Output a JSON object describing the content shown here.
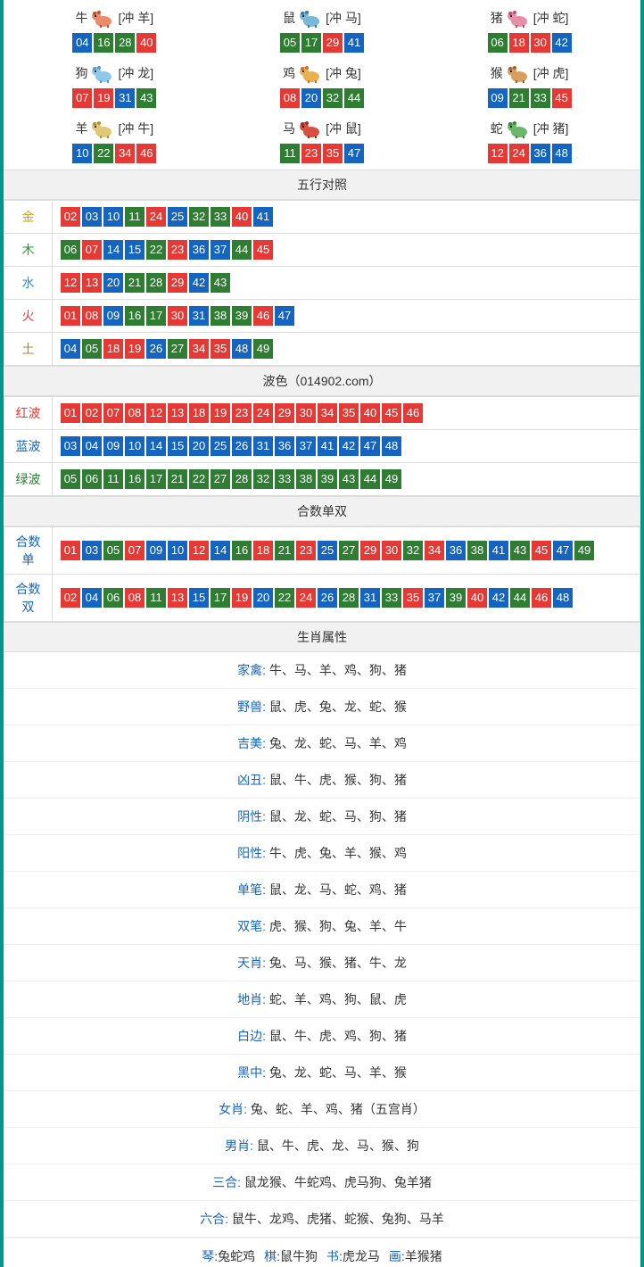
{
  "colors": {
    "red": "#e53935",
    "blue": "#1565c0",
    "green": "#2e7d32",
    "border": "#009688"
  },
  "zodiac_icons": {
    "niu": {
      "body": "#e88c6a",
      "accent": "#c05030"
    },
    "shu": {
      "body": "#7ab8d8",
      "accent": "#3a7da8"
    },
    "zhu": {
      "body": "#e88fa8",
      "accent": "#c05070"
    },
    "gou": {
      "body": "#8fc8e8",
      "accent": "#5a98c8"
    },
    "ji": {
      "body": "#e8b050",
      "accent": "#d07020"
    },
    "hou": {
      "body": "#d8a060",
      "accent": "#a06030"
    },
    "yang": {
      "body": "#e0c878",
      "accent": "#b09038"
    },
    "ma": {
      "body": "#d85040",
      "accent": "#a03020"
    },
    "she": {
      "body": "#6ab86a",
      "accent": "#3a883a"
    }
  },
  "zodiac": [
    {
      "name": "牛",
      "icon": "niu",
      "conflict": "[冲 羊]",
      "nums": [
        {
          "n": "04",
          "c": "blue"
        },
        {
          "n": "16",
          "c": "green"
        },
        {
          "n": "28",
          "c": "green"
        },
        {
          "n": "40",
          "c": "red"
        }
      ]
    },
    {
      "name": "鼠",
      "icon": "shu",
      "conflict": "[冲 马]",
      "nums": [
        {
          "n": "05",
          "c": "green"
        },
        {
          "n": "17",
          "c": "green"
        },
        {
          "n": "29",
          "c": "red"
        },
        {
          "n": "41",
          "c": "blue"
        }
      ]
    },
    {
      "name": "猪",
      "icon": "zhu",
      "conflict": "[冲 蛇]",
      "nums": [
        {
          "n": "06",
          "c": "green"
        },
        {
          "n": "18",
          "c": "red"
        },
        {
          "n": "30",
          "c": "red"
        },
        {
          "n": "42",
          "c": "blue"
        }
      ]
    },
    {
      "name": "狗",
      "icon": "gou",
      "conflict": "[冲 龙]",
      "nums": [
        {
          "n": "07",
          "c": "red"
        },
        {
          "n": "19",
          "c": "red"
        },
        {
          "n": "31",
          "c": "blue"
        },
        {
          "n": "43",
          "c": "green"
        }
      ]
    },
    {
      "name": "鸡",
      "icon": "ji",
      "conflict": "[冲 兔]",
      "nums": [
        {
          "n": "08",
          "c": "red"
        },
        {
          "n": "20",
          "c": "blue"
        },
        {
          "n": "32",
          "c": "green"
        },
        {
          "n": "44",
          "c": "green"
        }
      ]
    },
    {
      "name": "猴",
      "icon": "hou",
      "conflict": "[冲 虎]",
      "nums": [
        {
          "n": "09",
          "c": "blue"
        },
        {
          "n": "21",
          "c": "green"
        },
        {
          "n": "33",
          "c": "green"
        },
        {
          "n": "45",
          "c": "red"
        }
      ]
    },
    {
      "name": "羊",
      "icon": "yang",
      "conflict": "[冲 牛]",
      "nums": [
        {
          "n": "10",
          "c": "blue"
        },
        {
          "n": "22",
          "c": "green"
        },
        {
          "n": "34",
          "c": "red"
        },
        {
          "n": "46",
          "c": "red"
        }
      ]
    },
    {
      "name": "马",
      "icon": "ma",
      "conflict": "[冲 鼠]",
      "nums": [
        {
          "n": "11",
          "c": "green"
        },
        {
          "n": "23",
          "c": "red"
        },
        {
          "n": "35",
          "c": "red"
        },
        {
          "n": "47",
          "c": "blue"
        }
      ]
    },
    {
      "name": "蛇",
      "icon": "she",
      "conflict": "[冲 猪]",
      "nums": [
        {
          "n": "12",
          "c": "red"
        },
        {
          "n": "24",
          "c": "red"
        },
        {
          "n": "36",
          "c": "blue"
        },
        {
          "n": "48",
          "c": "blue"
        }
      ]
    }
  ],
  "wuxing": {
    "title": "五行对照",
    "rows": [
      {
        "label": "金",
        "cls": "label-gold",
        "nums": [
          {
            "n": "02",
            "c": "red"
          },
          {
            "n": "03",
            "c": "blue"
          },
          {
            "n": "10",
            "c": "blue"
          },
          {
            "n": "11",
            "c": "green"
          },
          {
            "n": "24",
            "c": "red"
          },
          {
            "n": "25",
            "c": "blue"
          },
          {
            "n": "32",
            "c": "green"
          },
          {
            "n": "33",
            "c": "green"
          },
          {
            "n": "40",
            "c": "red"
          },
          {
            "n": "41",
            "c": "blue"
          }
        ]
      },
      {
        "label": "木",
        "cls": "label-wood",
        "nums": [
          {
            "n": "06",
            "c": "green"
          },
          {
            "n": "07",
            "c": "red"
          },
          {
            "n": "14",
            "c": "blue"
          },
          {
            "n": "15",
            "c": "blue"
          },
          {
            "n": "22",
            "c": "green"
          },
          {
            "n": "23",
            "c": "red"
          },
          {
            "n": "36",
            "c": "blue"
          },
          {
            "n": "37",
            "c": "blue"
          },
          {
            "n": "44",
            "c": "green"
          },
          {
            "n": "45",
            "c": "red"
          }
        ]
      },
      {
        "label": "水",
        "cls": "label-water",
        "nums": [
          {
            "n": "12",
            "c": "red"
          },
          {
            "n": "13",
            "c": "red"
          },
          {
            "n": "20",
            "c": "blue"
          },
          {
            "n": "21",
            "c": "green"
          },
          {
            "n": "28",
            "c": "green"
          },
          {
            "n": "29",
            "c": "red"
          },
          {
            "n": "42",
            "c": "blue"
          },
          {
            "n": "43",
            "c": "green"
          }
        ]
      },
      {
        "label": "火",
        "cls": "label-fire",
        "nums": [
          {
            "n": "01",
            "c": "red"
          },
          {
            "n": "08",
            "c": "red"
          },
          {
            "n": "09",
            "c": "blue"
          },
          {
            "n": "16",
            "c": "green"
          },
          {
            "n": "17",
            "c": "green"
          },
          {
            "n": "30",
            "c": "red"
          },
          {
            "n": "31",
            "c": "blue"
          },
          {
            "n": "38",
            "c": "green"
          },
          {
            "n": "39",
            "c": "green"
          },
          {
            "n": "46",
            "c": "red"
          },
          {
            "n": "47",
            "c": "blue"
          }
        ]
      },
      {
        "label": "土",
        "cls": "label-earth",
        "nums": [
          {
            "n": "04",
            "c": "blue"
          },
          {
            "n": "05",
            "c": "green"
          },
          {
            "n": "18",
            "c": "red"
          },
          {
            "n": "19",
            "c": "red"
          },
          {
            "n": "26",
            "c": "blue"
          },
          {
            "n": "27",
            "c": "green"
          },
          {
            "n": "34",
            "c": "red"
          },
          {
            "n": "35",
            "c": "red"
          },
          {
            "n": "48",
            "c": "blue"
          },
          {
            "n": "49",
            "c": "green"
          }
        ]
      }
    ]
  },
  "bose": {
    "title": "波色（014902.com）",
    "rows": [
      {
        "label": "红波",
        "cls": "label-red",
        "nums": [
          {
            "n": "01",
            "c": "red"
          },
          {
            "n": "02",
            "c": "red"
          },
          {
            "n": "07",
            "c": "red"
          },
          {
            "n": "08",
            "c": "red"
          },
          {
            "n": "12",
            "c": "red"
          },
          {
            "n": "13",
            "c": "red"
          },
          {
            "n": "18",
            "c": "red"
          },
          {
            "n": "19",
            "c": "red"
          },
          {
            "n": "23",
            "c": "red"
          },
          {
            "n": "24",
            "c": "red"
          },
          {
            "n": "29",
            "c": "red"
          },
          {
            "n": "30",
            "c": "red"
          },
          {
            "n": "34",
            "c": "red"
          },
          {
            "n": "35",
            "c": "red"
          },
          {
            "n": "40",
            "c": "red"
          },
          {
            "n": "45",
            "c": "red"
          },
          {
            "n": "46",
            "c": "red"
          }
        ]
      },
      {
        "label": "蓝波",
        "cls": "label-blue",
        "nums": [
          {
            "n": "03",
            "c": "blue"
          },
          {
            "n": "04",
            "c": "blue"
          },
          {
            "n": "09",
            "c": "blue"
          },
          {
            "n": "10",
            "c": "blue"
          },
          {
            "n": "14",
            "c": "blue"
          },
          {
            "n": "15",
            "c": "blue"
          },
          {
            "n": "20",
            "c": "blue"
          },
          {
            "n": "25",
            "c": "blue"
          },
          {
            "n": "26",
            "c": "blue"
          },
          {
            "n": "31",
            "c": "blue"
          },
          {
            "n": "36",
            "c": "blue"
          },
          {
            "n": "37",
            "c": "blue"
          },
          {
            "n": "41",
            "c": "blue"
          },
          {
            "n": "42",
            "c": "blue"
          },
          {
            "n": "47",
            "c": "blue"
          },
          {
            "n": "48",
            "c": "blue"
          }
        ]
      },
      {
        "label": "绿波",
        "cls": "label-green",
        "nums": [
          {
            "n": "05",
            "c": "green"
          },
          {
            "n": "06",
            "c": "green"
          },
          {
            "n": "11",
            "c": "green"
          },
          {
            "n": "16",
            "c": "green"
          },
          {
            "n": "17",
            "c": "green"
          },
          {
            "n": "21",
            "c": "green"
          },
          {
            "n": "22",
            "c": "green"
          },
          {
            "n": "27",
            "c": "green"
          },
          {
            "n": "28",
            "c": "green"
          },
          {
            "n": "32",
            "c": "green"
          },
          {
            "n": "33",
            "c": "green"
          },
          {
            "n": "38",
            "c": "green"
          },
          {
            "n": "39",
            "c": "green"
          },
          {
            "n": "43",
            "c": "green"
          },
          {
            "n": "44",
            "c": "green"
          },
          {
            "n": "49",
            "c": "green"
          }
        ]
      }
    ]
  },
  "heshu": {
    "title": "合数单双",
    "rows": [
      {
        "label": "合数单",
        "cls": "label-blue",
        "nums": [
          {
            "n": "01",
            "c": "red"
          },
          {
            "n": "03",
            "c": "blue"
          },
          {
            "n": "05",
            "c": "green"
          },
          {
            "n": "07",
            "c": "red"
          },
          {
            "n": "09",
            "c": "blue"
          },
          {
            "n": "10",
            "c": "blue"
          },
          {
            "n": "12",
            "c": "red"
          },
          {
            "n": "14",
            "c": "blue"
          },
          {
            "n": "16",
            "c": "green"
          },
          {
            "n": "18",
            "c": "red"
          },
          {
            "n": "21",
            "c": "green"
          },
          {
            "n": "23",
            "c": "red"
          },
          {
            "n": "25",
            "c": "blue"
          },
          {
            "n": "27",
            "c": "green"
          },
          {
            "n": "29",
            "c": "red"
          },
          {
            "n": "30",
            "c": "red"
          },
          {
            "n": "32",
            "c": "green"
          },
          {
            "n": "34",
            "c": "red"
          },
          {
            "n": "36",
            "c": "blue"
          },
          {
            "n": "38",
            "c": "green"
          },
          {
            "n": "41",
            "c": "blue"
          },
          {
            "n": "43",
            "c": "green"
          },
          {
            "n": "45",
            "c": "red"
          },
          {
            "n": "47",
            "c": "blue"
          },
          {
            "n": "49",
            "c": "green"
          }
        ]
      },
      {
        "label": "合数双",
        "cls": "label-blue",
        "nums": [
          {
            "n": "02",
            "c": "red"
          },
          {
            "n": "04",
            "c": "blue"
          },
          {
            "n": "06",
            "c": "green"
          },
          {
            "n": "08",
            "c": "red"
          },
          {
            "n": "11",
            "c": "green"
          },
          {
            "n": "13",
            "c": "red"
          },
          {
            "n": "15",
            "c": "blue"
          },
          {
            "n": "17",
            "c": "green"
          },
          {
            "n": "19",
            "c": "red"
          },
          {
            "n": "20",
            "c": "blue"
          },
          {
            "n": "22",
            "c": "green"
          },
          {
            "n": "24",
            "c": "red"
          },
          {
            "n": "26",
            "c": "blue"
          },
          {
            "n": "28",
            "c": "green"
          },
          {
            "n": "31",
            "c": "blue"
          },
          {
            "n": "33",
            "c": "green"
          },
          {
            "n": "35",
            "c": "red"
          },
          {
            "n": "37",
            "c": "blue"
          },
          {
            "n": "39",
            "c": "green"
          },
          {
            "n": "40",
            "c": "red"
          },
          {
            "n": "42",
            "c": "blue"
          },
          {
            "n": "44",
            "c": "green"
          },
          {
            "n": "46",
            "c": "red"
          },
          {
            "n": "48",
            "c": "blue"
          }
        ]
      }
    ]
  },
  "shuxing": {
    "title": "生肖属性",
    "rows": [
      {
        "key": "家禽",
        "val": "牛、马、羊、鸡、狗、猪"
      },
      {
        "key": "野兽",
        "val": "鼠、虎、兔、龙、蛇、猴"
      },
      {
        "key": "吉美",
        "val": "兔、龙、蛇、马、羊、鸡"
      },
      {
        "key": "凶丑",
        "val": "鼠、牛、虎、猴、狗、猪"
      },
      {
        "key": "阴性",
        "val": "鼠、龙、蛇、马、狗、猪"
      },
      {
        "key": "阳性",
        "val": "牛、虎、兔、羊、猴、鸡"
      },
      {
        "key": "单笔",
        "val": "鼠、龙、马、蛇、鸡、猪"
      },
      {
        "key": "双笔",
        "val": "虎、猴、狗、兔、羊、牛"
      },
      {
        "key": "天肖",
        "val": "兔、马、猴、猪、牛、龙"
      },
      {
        "key": "地肖",
        "val": "蛇、羊、鸡、狗、鼠、虎"
      },
      {
        "key": "白边",
        "val": "鼠、牛、虎、鸡、狗、猪"
      },
      {
        "key": "黑中",
        "val": "兔、龙、蛇、马、羊、猴"
      },
      {
        "key": "女肖",
        "val": "兔、蛇、羊、鸡、猪（五宫肖）"
      },
      {
        "key": "男肖",
        "val": "鼠、牛、虎、龙、马、猴、狗"
      },
      {
        "key": "三合",
        "val": "鼠龙猴、牛蛇鸡、虎马狗、兔羊猪"
      },
      {
        "key": "六合",
        "val": "鼠牛、龙鸡、虎猪、蛇猴、兔狗、马羊"
      }
    ]
  },
  "lastrow": [
    {
      "k": "琴",
      "v": "兔蛇鸡"
    },
    {
      "k": "棋",
      "v": "鼠牛狗"
    },
    {
      "k": "书",
      "v": "虎龙马"
    },
    {
      "k": "画",
      "v": "羊猴猪"
    }
  ]
}
